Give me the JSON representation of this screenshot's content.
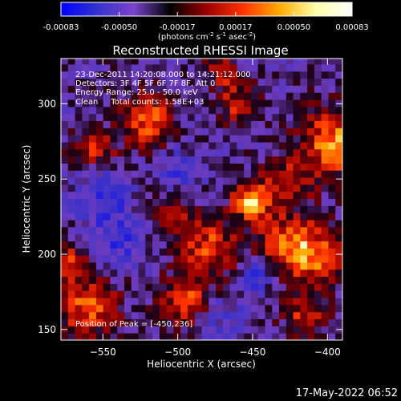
{
  "chart_data": {
    "type": "heatmap",
    "title": "Reconstructed RHESSI Image",
    "colorbar": {
      "ticks": [
        "-0.00083",
        "-0.00050",
        "-0.00017",
        "0.00017",
        "0.00050",
        "0.00083"
      ],
      "unit_main": "(photons cm",
      "unit_sup1": "-2",
      "unit_mid1": " s",
      "unit_sup2": "-1",
      "unit_mid2": " asec",
      "unit_sup3": "-2",
      "unit_end": ")",
      "colors": [
        "#0000ff",
        "#3333cc",
        "#7a44cc",
        "#000000",
        "#9b0000",
        "#ff3300",
        "#ffaa00",
        "#ffffaa",
        "#ffffff"
      ],
      "min": -0.00083,
      "max": 0.00083
    },
    "xlabel": "Heliocentric X (arcsec)",
    "ylabel": "Heliocentric Y (arcsec)",
    "xlim": [
      -578,
      -390
    ],
    "ylim": [
      143,
      330
    ],
    "x_ticks": [
      {
        "value": -550,
        "label": "−550"
      },
      {
        "value": -500,
        "label": "−500"
      },
      {
        "value": -450,
        "label": "−450"
      },
      {
        "value": -400,
        "label": "−400"
      }
    ],
    "y_ticks": [
      {
        "value": 150,
        "label": "150"
      },
      {
        "value": 200,
        "label": "200"
      },
      {
        "value": 250,
        "label": "250"
      },
      {
        "value": 300,
        "label": "300"
      }
    ],
    "annotations": [
      "23-Dec-2011 14:20:08.000 to 14:21:12.000",
      "Detectors: 3F 4F 5F 6F 7F 8F, Att 0",
      "Energy Range: 25.0 - 50.0 keV",
      "Clean     Total counts: 1.58E+03"
    ],
    "peak_label": "Position of Peak = [-450,236]",
    "timestamp": "17-May-2022 06:52"
  }
}
